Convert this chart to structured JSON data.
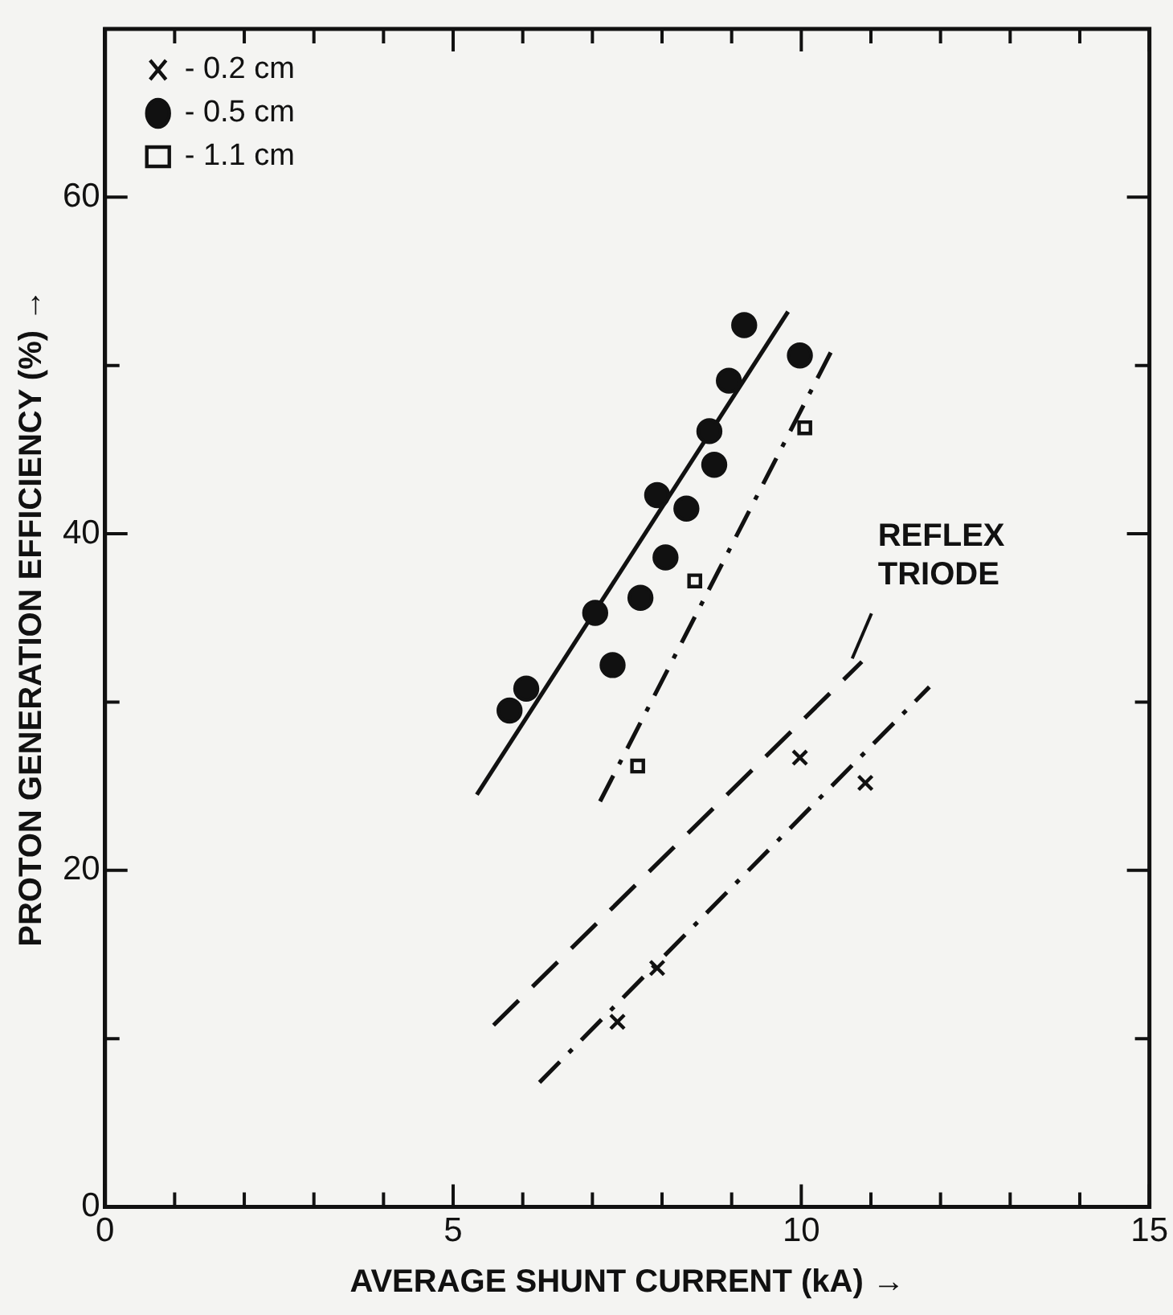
{
  "chart_data": {
    "type": "scatter",
    "xlabel": "AVERAGE SHUNT CURRENT (kA) →",
    "ylabel": "PROTON GENERATION EFFICIENCY (%) →",
    "xlim": [
      0,
      15
    ],
    "ylim": [
      0,
      70
    ],
    "xticks": [
      0,
      {
        "value": 1,
        "label": null
      },
      {
        "value": 2,
        "label": null
      },
      {
        "value": 3,
        "label": null
      },
      {
        "value": 4,
        "label": null
      },
      5,
      {
        "value": 6,
        "label": null
      },
      {
        "value": 7,
        "label": null
      },
      {
        "value": 8,
        "label": null
      },
      {
        "value": 9,
        "label": null
      },
      10,
      {
        "value": 11,
        "label": null
      },
      {
        "value": 12,
        "label": null
      },
      {
        "value": 13,
        "label": null
      },
      {
        "value": 14,
        "label": null
      },
      15
    ],
    "yticks": [
      0,
      {
        "value": 10,
        "label": null
      },
      20,
      {
        "value": 30,
        "label": null
      },
      40,
      {
        "value": 50,
        "label": null
      },
      60,
      {
        "value": 70,
        "label": null
      }
    ],
    "grid": false,
    "legend": "top left",
    "series": [
      {
        "name": "- 0.2 cm",
        "color": "#111111",
        "marker": "cross",
        "x": [
          7.36,
          7.93,
          9.98,
          10.92
        ],
        "values": [
          11.0,
          14.2,
          26.7,
          25.2
        ]
      },
      {
        "name": "- 0.5 cm",
        "color": "#111111",
        "marker": "circle",
        "x": [
          5.81,
          6.05,
          7.04,
          7.29,
          7.69,
          8.05,
          7.93,
          8.35,
          8.75,
          8.68,
          8.96,
          9.18,
          9.98
        ],
        "values": [
          29.5,
          30.8,
          35.3,
          32.2,
          36.2,
          38.6,
          42.3,
          41.5,
          44.1,
          46.1,
          49.1,
          52.4,
          50.6
        ]
      },
      {
        "name": "- 1.1 cm",
        "color": "#111111",
        "marker": "square",
        "x": [
          7.65,
          8.47,
          10.05
        ],
        "values": [
          26.2,
          37.2,
          46.3
        ]
      },
      {
        "type": "line",
        "color": "#111111",
        "line_style": "solid",
        "marker": "none",
        "x": [
          5.34,
          9.81
        ],
        "values": [
          24.5,
          53.2
        ]
      },
      {
        "type": "line",
        "color": "#111111",
        "line_style": "dashdot",
        "marker": "none",
        "x": [
          7.11,
          10.45
        ],
        "values": [
          24.1,
          51.0
        ]
      },
      {
        "type": "line",
        "color": "#111111",
        "line_style": "dashed",
        "marker": "none",
        "x": [
          5.58,
          10.87
        ],
        "values": [
          10.8,
          32.4
        ]
      },
      {
        "type": "line",
        "color": "#111111",
        "line_style": "dashdot",
        "marker": "none",
        "x": [
          6.24,
          11.84
        ],
        "values": [
          7.4,
          30.9
        ]
      }
    ],
    "annotations": [
      {
        "text": "REFLEX TRIODE",
        "x": 10.87,
        "y": 32.4
      }
    ]
  }
}
